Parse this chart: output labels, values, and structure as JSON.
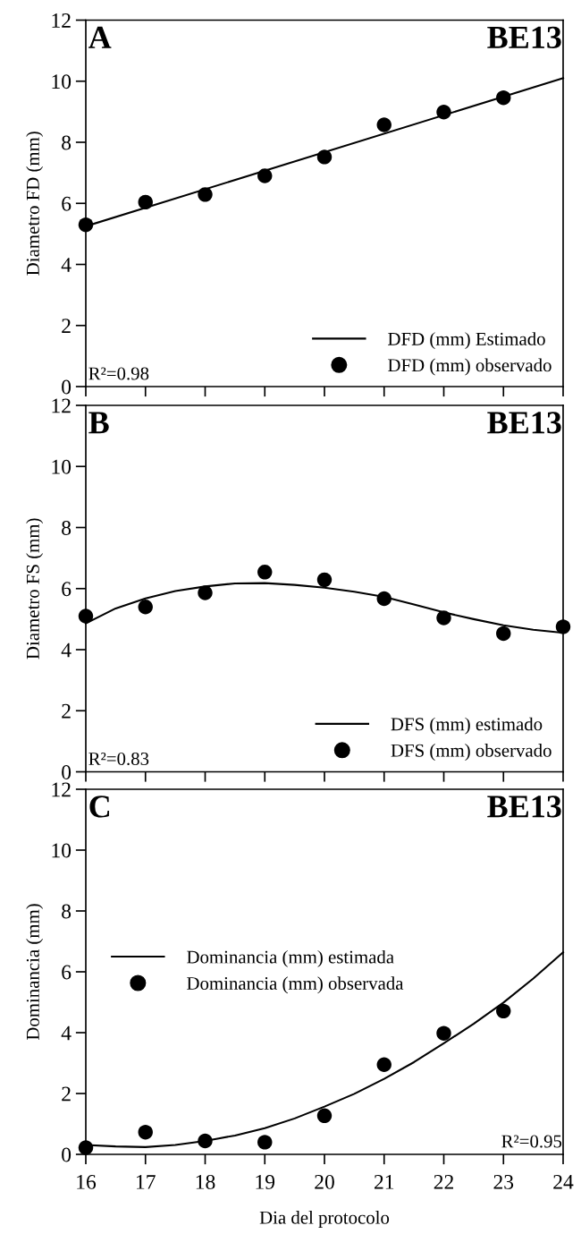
{
  "chart_data": [
    {
      "type": "scatter",
      "ylabel": "Diametro FD (mm)",
      "annotations": [
        "A",
        "BE13",
        "R²=0.98"
      ],
      "xlim": [
        16,
        24
      ],
      "xticks": [
        16,
        17,
        18,
        19,
        20,
        21,
        22,
        23,
        24
      ],
      "ylim": [
        0,
        12
      ],
      "yticks": [
        0,
        2,
        4,
        6,
        8,
        10,
        12
      ],
      "tick_labels": "y",
      "legend": "bottom right",
      "series": [
        {
          "name": "DFD (mm) Estimado",
          "type": "line",
          "marker": "none",
          "color": "#000000",
          "x": [
            16,
            24
          ],
          "values": [
            5.25,
            10.1
          ]
        },
        {
          "name": "DFD (mm) observado",
          "marker": "circle",
          "color": "#000000",
          "x": [
            16,
            17,
            18,
            19,
            20,
            21,
            22,
            23
          ],
          "values": [
            5.3,
            6.04,
            6.29,
            6.9,
            7.52,
            8.57,
            8.99,
            9.46
          ]
        }
      ]
    },
    {
      "type": "scatter",
      "ylabel": "Diametro FS (mm)",
      "annotations": [
        "B",
        "BE13",
        "R²=0.83"
      ],
      "xlim": [
        16,
        24
      ],
      "xticks": [
        16,
        17,
        18,
        19,
        20,
        21,
        22,
        23,
        24
      ],
      "ylim": [
        0,
        12
      ],
      "yticks": [
        0,
        2,
        4,
        6,
        8,
        10,
        12
      ],
      "tick_labels": "y",
      "legend": "bottom right",
      "series": [
        {
          "name": "DFS (mm) estimado",
          "type": "line",
          "marker": "none",
          "color": "#000000",
          "x": [
            16,
            16.5,
            17,
            17.5,
            18,
            18.5,
            19,
            19.5,
            20,
            20.5,
            21,
            21.5,
            22,
            22.5,
            23,
            23.5,
            24
          ],
          "values": [
            4.86,
            5.35,
            5.68,
            5.92,
            6.07,
            6.17,
            6.18,
            6.12,
            6.03,
            5.9,
            5.73,
            5.48,
            5.22,
            5.0,
            4.8,
            4.65,
            4.55
          ]
        },
        {
          "name": "DFS (mm) observado",
          "marker": "circle",
          "color": "#000000",
          "x": [
            16,
            17,
            18,
            19,
            20,
            21,
            22,
            23,
            24
          ],
          "values": [
            5.1,
            5.4,
            5.86,
            6.54,
            6.29,
            5.67,
            5.04,
            4.53,
            4.75
          ]
        }
      ]
    },
    {
      "type": "scatter",
      "ylabel": "Dominancia (mm)",
      "xlabel": "Dia del protocolo",
      "annotations": [
        "C",
        "BE13",
        "R²=0.95"
      ],
      "xlim": [
        16,
        24
      ],
      "xticks": [
        16,
        17,
        18,
        19,
        20,
        21,
        22,
        23,
        24
      ],
      "ylim": [
        0,
        12
      ],
      "yticks": [
        0,
        2,
        4,
        6,
        8,
        10,
        12
      ],
      "legend": "center left",
      "series": [
        {
          "name": "Dominancia (mm) estimada",
          "type": "line",
          "marker": "none",
          "color": "#000000",
          "x": [
            16,
            16.5,
            17,
            17.5,
            18,
            18.5,
            19,
            19.5,
            20,
            20.5,
            21,
            21.5,
            22,
            22.5,
            23,
            23.5,
            24
          ],
          "values": [
            0.31,
            0.26,
            0.24,
            0.31,
            0.44,
            0.62,
            0.86,
            1.18,
            1.57,
            1.99,
            2.48,
            3.03,
            3.65,
            4.29,
            4.99,
            5.78,
            6.64
          ]
        },
        {
          "name": "Dominancia (mm) observada",
          "marker": "circle",
          "color": "#000000",
          "x": [
            16,
            17,
            18,
            19,
            20,
            21,
            22,
            23
          ],
          "values": [
            0.22,
            0.73,
            0.44,
            0.4,
            1.27,
            2.95,
            3.98,
            4.71
          ]
        }
      ]
    }
  ]
}
